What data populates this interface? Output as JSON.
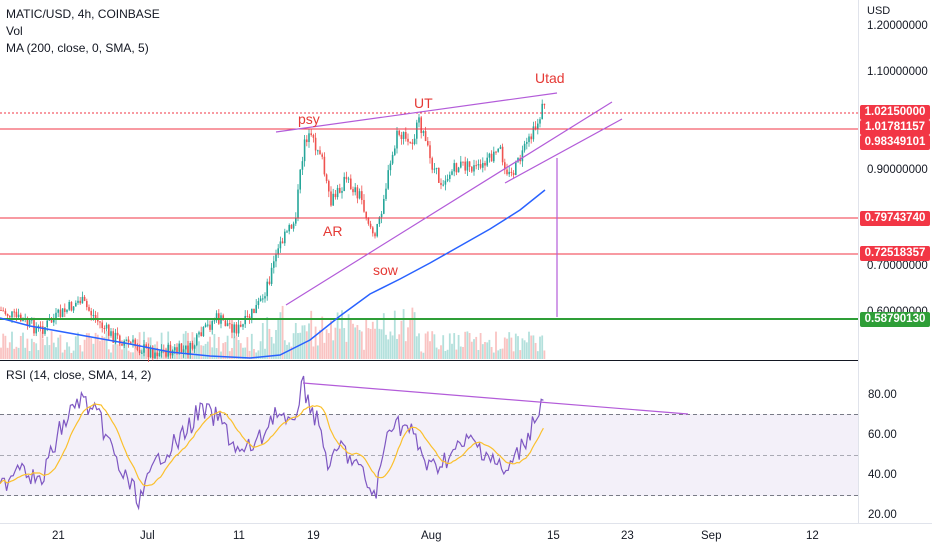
{
  "header": {
    "symbol_line": "MATIC/USD, 4h, COINBASE",
    "volume_label": "Vol",
    "ma_label": "MA (200, close, 0, SMA, 5)",
    "rsi_label": "RSI (14, close, SMA, 14, 2)"
  },
  "price_axis": {
    "currency": "USD",
    "ticks": [
      "1.20000000",
      "1.10000000",
      "0.90000000",
      "0.70000000",
      "0.60000000"
    ],
    "labels": [
      {
        "text": "1.02150000",
        "color": "#f23645"
      },
      {
        "text": "1.01781157",
        "color": "#f23645"
      },
      {
        "text": "0.98349101",
        "color": "#f23645"
      },
      {
        "text": "0.79743740",
        "color": "#f23645"
      },
      {
        "text": "0.72518357",
        "color": "#f23645"
      },
      {
        "text": "0.58790130",
        "color": "#2e9e37"
      }
    ]
  },
  "rsi_axis": {
    "ticks": [
      "80.00",
      "60.00",
      "40.00",
      "20.00"
    ]
  },
  "time_axis": {
    "ticks": [
      "21",
      "Jul",
      "11",
      "19",
      "Aug",
      "15",
      "23",
      "Sep",
      "12"
    ]
  },
  "annotations": {
    "psy": "psy",
    "ut": "UT",
    "utad": "Utad",
    "ar": "AR",
    "sow": "sow"
  },
  "colors": {
    "resistance": "#f23645",
    "support": "#2e9e37",
    "trendline": "#b35cd9",
    "candle_up": "#26a69a",
    "candle_down": "#ef5350",
    "ma": "#2962ff",
    "rsi": "#7e57c2",
    "rsi_ma": "#fbc02d"
  }
}
